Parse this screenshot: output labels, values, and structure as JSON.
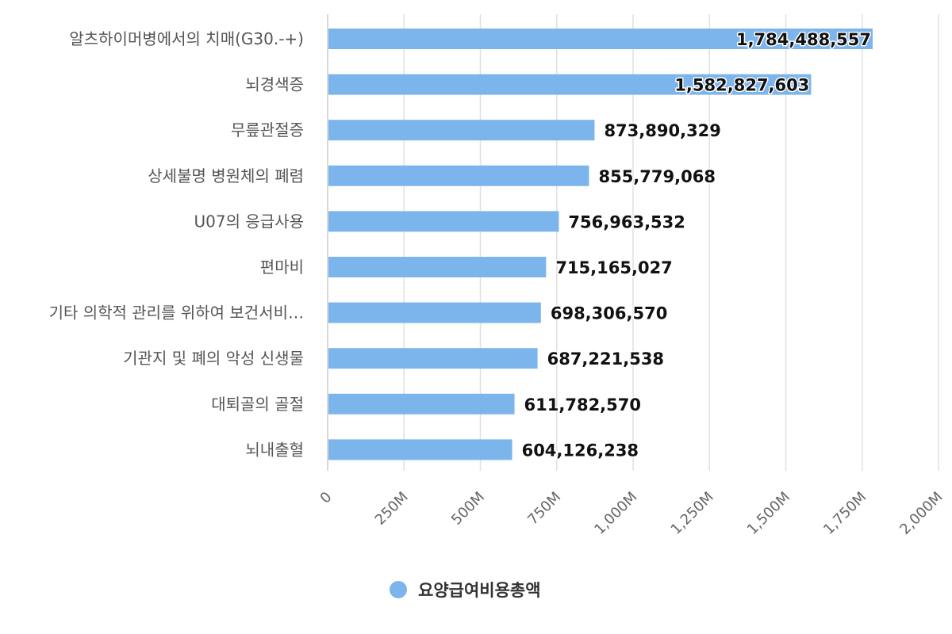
{
  "chart_data": {
    "type": "bar",
    "orientation": "horizontal",
    "categories": [
      "알츠하이머병에서의 치매(G30.-+)",
      "뇌경색증",
      "무릎관절증",
      "상세불명 병원체의 폐렴",
      "U07의 응급사용",
      "편마비",
      "기타 의학적 관리를 위하여 보건서비…",
      "기관지 및 폐의 악성 신생물",
      "대퇴골의 골절",
      "뇌내출혈"
    ],
    "series": [
      {
        "name": "요양급여비용총액",
        "color": "#7cb5ec",
        "values": [
          1784488557,
          1582827603,
          873890329,
          855779068,
          756963532,
          715165027,
          698306570,
          687221538,
          611782570,
          604126238
        ],
        "labels": [
          "1,784,488,557",
          "1,582,827,603",
          "873,890,329",
          "855,779,068",
          "756,963,532",
          "715,165,027",
          "698,306,570",
          "687,221,538",
          "611,782,570",
          "604,126,238"
        ]
      }
    ],
    "xlim": [
      0,
      2000000000
    ],
    "xticks": [
      0,
      250000000,
      500000000,
      750000000,
      1000000000,
      1250000000,
      1500000000,
      1750000000,
      2000000000
    ],
    "xtick_labels": [
      "0",
      "250M",
      "500M",
      "750M",
      "1,000M",
      "1,250M",
      "1,500M",
      "1,750M",
      "2,000M"
    ],
    "grid": true,
    "legend": "bottom-center",
    "title": "",
    "xlabel": "",
    "ylabel": ""
  }
}
